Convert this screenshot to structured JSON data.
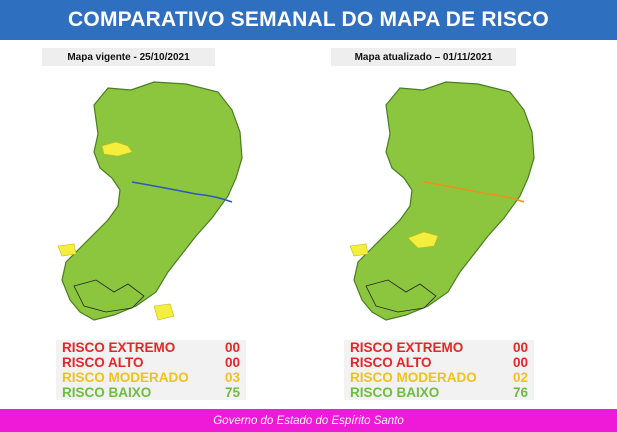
{
  "header": {
    "title": "COMPARATIVO SEMANAL DO MAPA DE RISCO",
    "bg": "#2f6fc0"
  },
  "panels": [
    {
      "label": "Mapa vigente - 25/10/2021",
      "counts": [
        {
          "label": "RISCO EXTREMO",
          "value": "00",
          "color": "#e32727"
        },
        {
          "label": "RISCO ALTO",
          "value": "00",
          "color": "#e32727"
        },
        {
          "label": "RISCO MODERADO",
          "value": "03",
          "color": "#f2c21b"
        },
        {
          "label": "RISCO BAIXO",
          "value": "75",
          "color": "#6cbf3a"
        }
      ]
    },
    {
      "label": "Mapa atualizado – 01/11/2021",
      "counts": [
        {
          "label": "RISCO EXTREMO",
          "value": "00",
          "color": "#e32727"
        },
        {
          "label": "RISCO ALTO",
          "value": "00",
          "color": "#e32727"
        },
        {
          "label": "RISCO MODERADO",
          "value": "02",
          "color": "#f2c21b"
        },
        {
          "label": "RISCO BAIXO",
          "value": "76",
          "color": "#6cbf3a"
        }
      ]
    }
  ],
  "colors": {
    "low_risk": "#8cc63f",
    "moderate_risk": "#f4ef3c",
    "footer_bg": "#ef19d8"
  },
  "footer": {
    "text": "Governo do Estado do Espírito Santo"
  }
}
